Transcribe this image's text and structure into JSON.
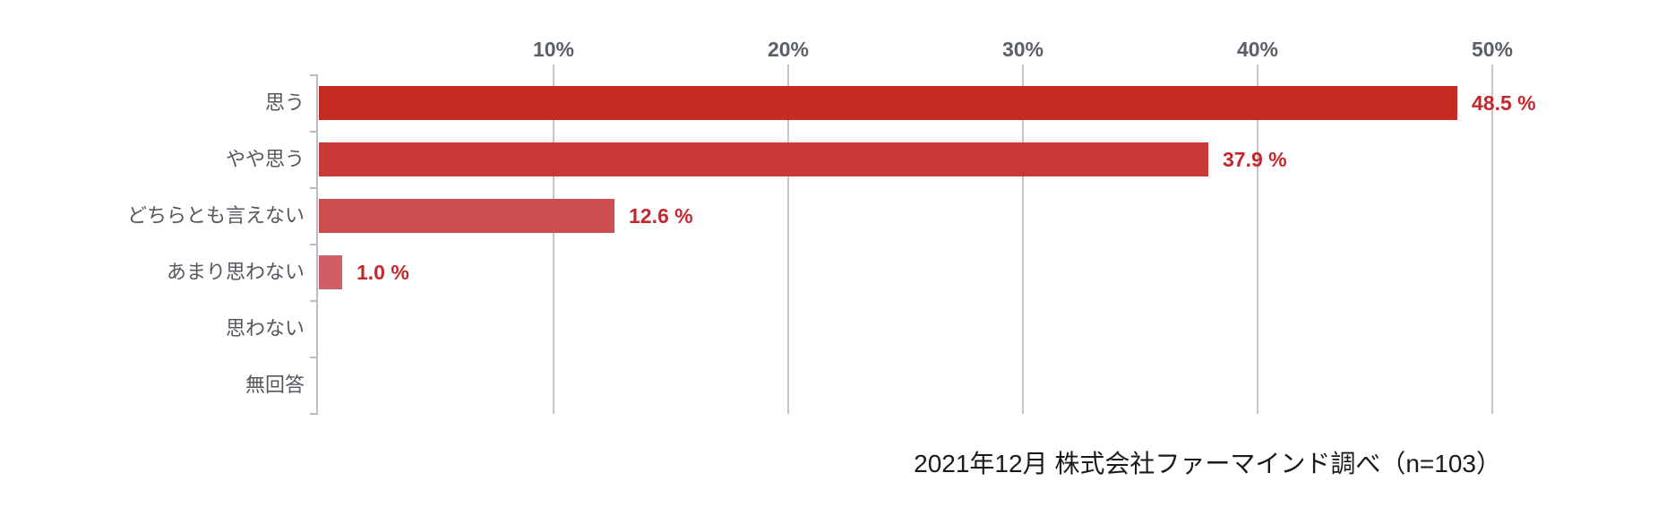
{
  "chart_data": {
    "type": "bar",
    "orientation": "horizontal",
    "title": "",
    "categories": [
      "思う",
      "やや思う",
      "どちらとも言えない",
      "あまり思わない",
      "思わない",
      "無回答"
    ],
    "values": [
      48.5,
      37.9,
      12.6,
      1.0,
      0,
      0
    ],
    "value_labels": [
      "48.5 %",
      "37.9 %",
      "12.6 %",
      "1.0 %",
      "",
      ""
    ],
    "bar_colors": [
      "#c52b22",
      "#c93a36",
      "#cc4e4e",
      "#d05f65",
      "",
      ""
    ],
    "x_ticks": [
      {
        "label": "10%",
        "value": 10
      },
      {
        "label": "20%",
        "value": 20
      },
      {
        "label": "30%",
        "value": 30
      },
      {
        "label": "40%",
        "value": 40
      },
      {
        "label": "50%",
        "value": 50
      }
    ],
    "xlim": [
      0,
      52
    ],
    "grid": true,
    "legend": false,
    "source_note": "2021年12月 株式会社ファーマインド調べ（n=103）",
    "colors": {
      "value_label": "#c2282d",
      "tick_label": "#5b6066",
      "category_label": "#55585e",
      "gridline": "#c6c6c6",
      "axis": "#b6bfca"
    }
  }
}
